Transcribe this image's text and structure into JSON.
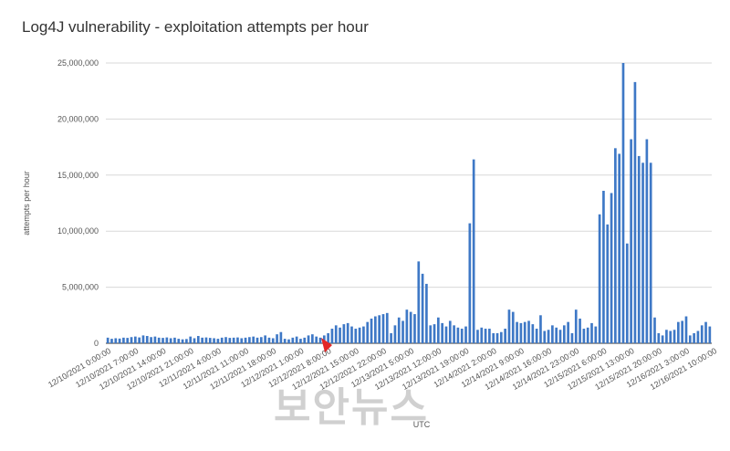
{
  "chart_data": {
    "type": "bar",
    "title": "Log4J vulnerability - exploitation attempts per hour",
    "ylabel": "attempts per hour",
    "xlabel": "UTC",
    "ylim": [
      0,
      25000000
    ],
    "yticks": [
      0,
      5000000,
      10000000,
      15000000,
      20000000,
      25000000
    ],
    "ytick_labels": [
      "0",
      "5,000,000",
      "10,000,000",
      "15,000,000",
      "20,000,000",
      "25,000,000"
    ],
    "xtick_labels": [
      "12/10/2021 0:00:00",
      "12/10/2021 7:00:00",
      "12/10/2021 14:00:00",
      "12/10/2021 21:00:00",
      "12/11/2021 4:00:00",
      "12/11/2021 11:00:00",
      "12/11/2021 18:00:00",
      "12/12/2021 1:00:00",
      "12/12/2021 8:00:00",
      "12/12/2021 15:00:00",
      "12/12/2021 22:00:00",
      "12/13/2021 5:00:00",
      "12/13/2021 12:00:00",
      "12/13/2021 19:00:00",
      "12/14/2021 2:00:00",
      "12/14/2021 9:00:00",
      "12/14/2021 16:00:00",
      "12/14/2021 23:00:00",
      "12/15/2021 6:00:00",
      "12/15/2021 13:00:00",
      "12/15/2021 20:00:00",
      "12/16/2021 3:00:00",
      "12/16/2021 10:00:00"
    ],
    "values": [
      500000,
      400000,
      450000,
      420000,
      500000,
      480000,
      550000,
      600000,
      520000,
      700000,
      650000,
      550000,
      600000,
      500000,
      480000,
      520000,
      450000,
      500000,
      400000,
      350000,
      380000,
      600000,
      450000,
      650000,
      500000,
      520000,
      480000,
      450000,
      400000,
      500000,
      550000,
      480000,
      500000,
      520000,
      450000,
      500000,
      550000,
      600000,
      500000,
      550000,
      700000,
      500000,
      450000,
      800000,
      1000000,
      400000,
      350000,
      500000,
      600000,
      400000,
      500000,
      700000,
      800000,
      600000,
      500000,
      700000,
      900000,
      1300000,
      1600000,
      1400000,
      1700000,
      1800000,
      1500000,
      1300000,
      1400000,
      1500000,
      1900000,
      2200000,
      2400000,
      2500000,
      2600000,
      2700000,
      900000,
      1600000,
      2300000,
      2000000,
      3000000,
      2800000,
      2600000,
      7300000,
      6200000,
      5300000,
      1600000,
      1700000,
      2300000,
      1800000,
      1500000,
      2000000,
      1600000,
      1400000,
      1300000,
      1500000,
      10700000,
      16400000,
      1200000,
      1400000,
      1300000,
      1300000,
      900000,
      900000,
      1000000,
      1300000,
      3000000,
      2800000,
      1900000,
      1800000,
      1900000,
      2000000,
      1700000,
      1300000,
      2500000,
      1100000,
      1200000,
      1600000,
      1400000,
      1200000,
      1600000,
      1900000,
      900000,
      3000000,
      2200000,
      1300000,
      1400000,
      1800000,
      1500000,
      11500000,
      13600000,
      10600000,
      13400000,
      17400000,
      16900000,
      25000000,
      8900000,
      18200000,
      23300000,
      16700000,
      16100000,
      18200000,
      16100000,
      2300000,
      900000,
      700000,
      1200000,
      1100000,
      1200000,
      1900000,
      2000000,
      2400000,
      700000,
      900000,
      1100000,
      1600000,
      1900000,
      1500000
    ],
    "bar_color": "#3e78c6",
    "grid": true,
    "legend": "none"
  },
  "watermark": "보안뉴스"
}
